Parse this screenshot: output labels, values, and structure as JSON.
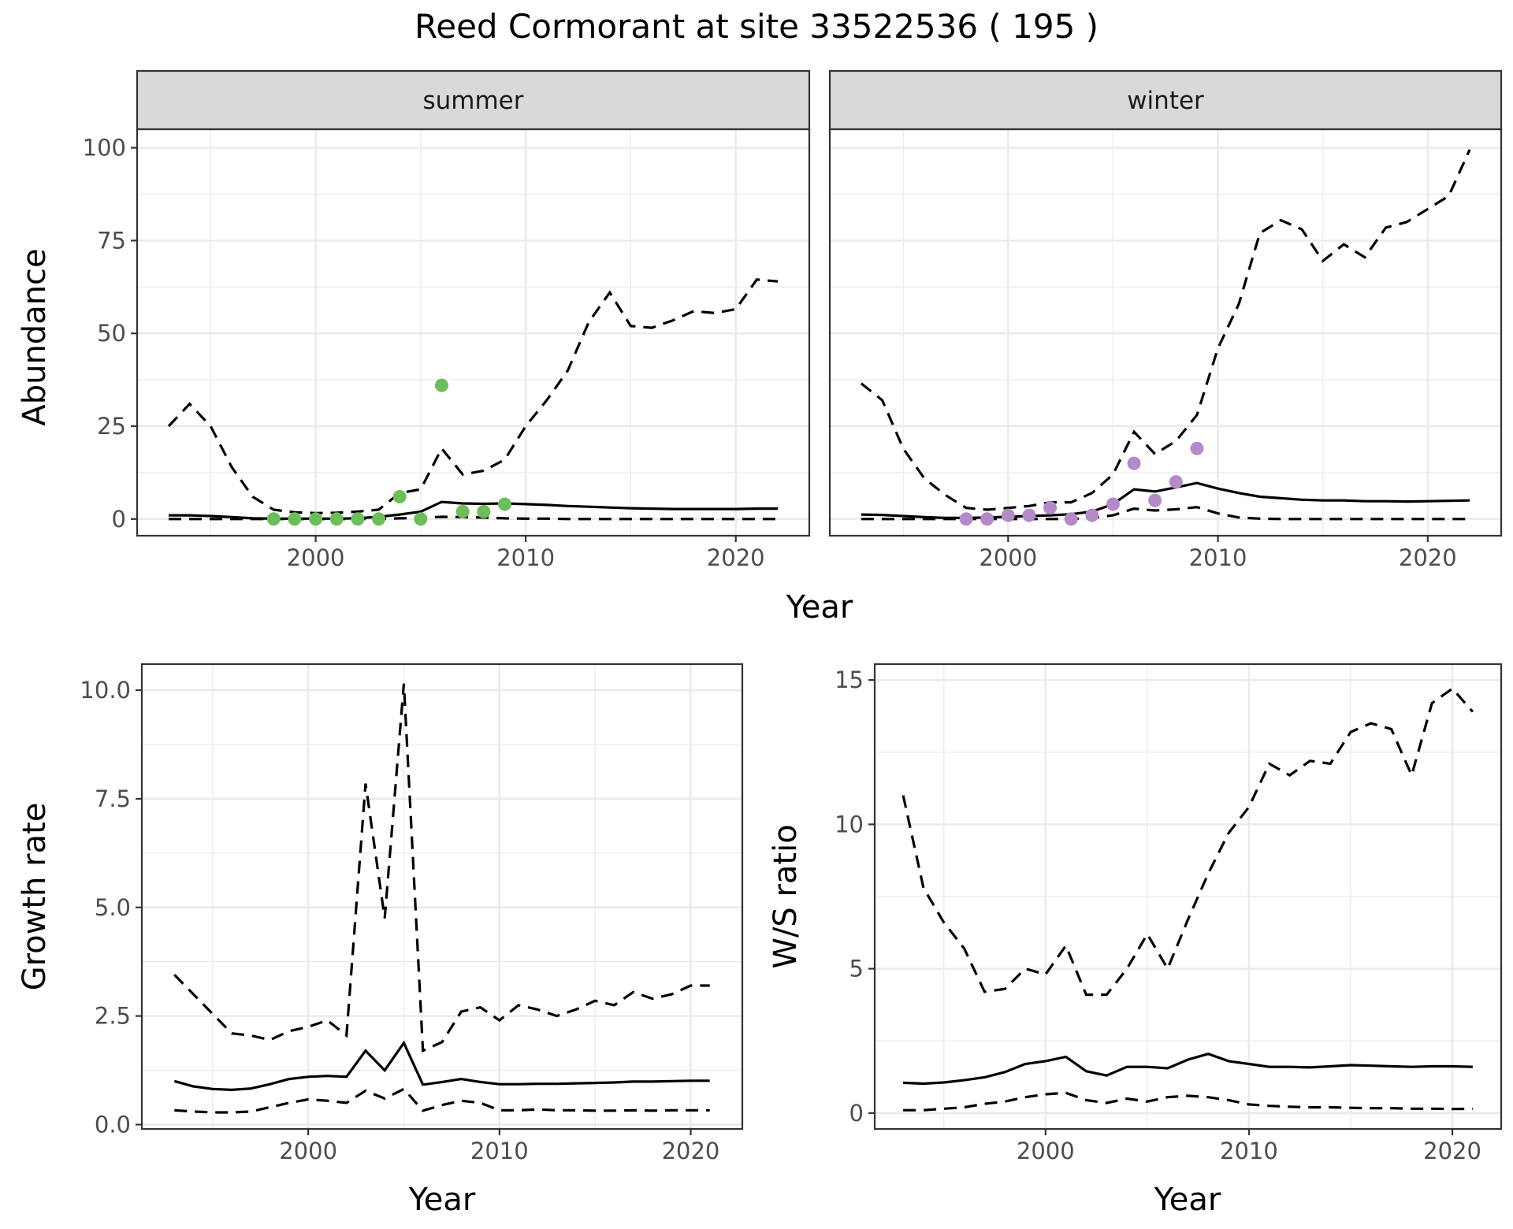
{
  "title": "Reed Cormorant at site 33522536 ( 195 )",
  "colors": {
    "summer_points": "#6dbd5a",
    "winter_points": "#b48ac8"
  },
  "chart_data": [
    {
      "id": "abundance",
      "type": "line",
      "facets": [
        "summer",
        "winter"
      ],
      "xlabel": "Year",
      "ylabel": "Abundance",
      "xlim": [
        1991.5,
        2023.5
      ],
      "ylim": [
        -4.5,
        105
      ],
      "xticks": [
        2000,
        2010,
        2020
      ],
      "yticks": [
        0,
        25,
        50,
        75,
        100
      ],
      "grid": true,
      "panels": [
        {
          "facet": "summer",
          "points_color": "#6dbd5a",
          "x": [
            1993,
            1994,
            1995,
            1996,
            1997,
            1998,
            1999,
            2000,
            2001,
            2002,
            2003,
            2004,
            2005,
            2006,
            2007,
            2008,
            2009,
            2010,
            2011,
            2012,
            2013,
            2014,
            2015,
            2016,
            2017,
            2018,
            2019,
            2020,
            2021,
            2022
          ],
          "mean": [
            1.0,
            1.0,
            0.8,
            0.5,
            0.2,
            0.1,
            0.1,
            0.1,
            0.1,
            0.2,
            0.6,
            1.2,
            2.0,
            4.6,
            4.2,
            4.1,
            4.2,
            4.0,
            3.8,
            3.5,
            3.3,
            3.1,
            2.9,
            2.8,
            2.7,
            2.7,
            2.7,
            2.7,
            2.8,
            2.8
          ],
          "upper": [
            25,
            31,
            25,
            14,
            6,
            2.5,
            1.8,
            1.6,
            1.7,
            2.0,
            2.5,
            7,
            8,
            19,
            12,
            13,
            16,
            25,
            32,
            40,
            53,
            61,
            52,
            51.5,
            53.5,
            56,
            55.5,
            56.5,
            64.5,
            64
          ],
          "lower": [
            0,
            0,
            0,
            0,
            0,
            0,
            0,
            0,
            0,
            0,
            0,
            0.2,
            0.3,
            0.6,
            0.5,
            0.4,
            0.2,
            0.1,
            0.1,
            0,
            0,
            0,
            0,
            0,
            0,
            0,
            0,
            0,
            0,
            0
          ],
          "observed": [
            {
              "x": 1998,
              "y": 0
            },
            {
              "x": 1999,
              "y": 0
            },
            {
              "x": 2000,
              "y": 0
            },
            {
              "x": 2001,
              "y": 0
            },
            {
              "x": 2002,
              "y": 0
            },
            {
              "x": 2003,
              "y": 0
            },
            {
              "x": 2004,
              "y": 6
            },
            {
              "x": 2005,
              "y": 0
            },
            {
              "x": 2006,
              "y": 36
            },
            {
              "x": 2007,
              "y": 2
            },
            {
              "x": 2008,
              "y": 2
            },
            {
              "x": 2009,
              "y": 4
            }
          ]
        },
        {
          "facet": "winter",
          "points_color": "#b48ac8",
          "x": [
            1993,
            1994,
            1995,
            1996,
            1997,
            1998,
            1999,
            2000,
            2001,
            2002,
            2003,
            2004,
            2005,
            2006,
            2007,
            2008,
            2009,
            2010,
            2011,
            2012,
            2013,
            2014,
            2015,
            2016,
            2017,
            2018,
            2019,
            2020,
            2021,
            2022
          ],
          "mean": [
            1.2,
            1.1,
            0.8,
            0.5,
            0.3,
            0.3,
            0.4,
            0.6,
            0.8,
            1.0,
            1.3,
            2.0,
            4.0,
            8.0,
            7.4,
            8.5,
            9.7,
            8.2,
            7.0,
            6.0,
            5.6,
            5.2,
            5.0,
            5.0,
            4.8,
            4.8,
            4.7,
            4.8,
            4.9,
            5.0
          ],
          "upper": [
            36.5,
            32,
            19,
            11,
            6.5,
            3.0,
            2.5,
            3.0,
            3.5,
            4.5,
            4.5,
            7,
            12,
            23.5,
            17.5,
            21,
            28,
            46,
            58,
            77,
            80.5,
            78,
            69.5,
            74,
            70.5,
            78.5,
            80,
            83.5,
            87,
            99.5
          ],
          "lower": [
            0,
            0,
            0,
            0,
            0,
            0,
            0,
            0,
            0,
            0,
            0,
            0.3,
            1.0,
            2.8,
            2.3,
            2.6,
            3.2,
            1.5,
            0.4,
            0.1,
            0,
            0,
            0,
            0,
            0,
            0,
            0,
            0,
            0,
            0
          ],
          "observed": [
            {
              "x": 1998,
              "y": 0
            },
            {
              "x": 1999,
              "y": 0
            },
            {
              "x": 2000,
              "y": 1
            },
            {
              "x": 2001,
              "y": 1
            },
            {
              "x": 2002,
              "y": 3
            },
            {
              "x": 2003,
              "y": 0
            },
            {
              "x": 2004,
              "y": 1
            },
            {
              "x": 2005,
              "y": 4
            },
            {
              "x": 2006,
              "y": 15
            },
            {
              "x": 2007,
              "y": 5
            },
            {
              "x": 2008,
              "y": 10
            },
            {
              "x": 2009,
              "y": 19
            }
          ]
        }
      ]
    },
    {
      "id": "growth",
      "type": "line",
      "xlabel": "Year",
      "ylabel": "Growth rate",
      "xlim": [
        1991.3,
        2022.7
      ],
      "ylim": [
        -0.1,
        10.6
      ],
      "xticks": [
        2000,
        2010,
        2020
      ],
      "yticks": [
        0.0,
        2.5,
        5.0,
        7.5,
        10.0
      ],
      "ytick_labels": [
        "0.0",
        "2.5",
        "5.0",
        "7.5",
        "10.0"
      ],
      "grid": true,
      "x": [
        1993,
        1994,
        1995,
        1996,
        1997,
        1998,
        1999,
        2000,
        2001,
        2002,
        2003,
        2004,
        2005,
        2006,
        2007,
        2008,
        2009,
        2010,
        2011,
        2012,
        2013,
        2014,
        2015,
        2016,
        2017,
        2018,
        2019,
        2020,
        2021
      ],
      "mean": [
        1.0,
        0.88,
        0.82,
        0.8,
        0.83,
        0.93,
        1.05,
        1.1,
        1.12,
        1.1,
        1.7,
        1.25,
        1.88,
        0.92,
        0.98,
        1.05,
        0.98,
        0.93,
        0.93,
        0.94,
        0.94,
        0.95,
        0.96,
        0.97,
        0.99,
        0.99,
        1.0,
        1.01,
        1.01
      ],
      "upper": [
        3.45,
        3.0,
        2.55,
        2.1,
        2.05,
        1.95,
        2.15,
        2.25,
        2.4,
        2.05,
        7.85,
        4.75,
        10.15,
        1.7,
        1.9,
        2.6,
        2.7,
        2.4,
        2.75,
        2.65,
        2.5,
        2.65,
        2.85,
        2.75,
        3.05,
        2.9,
        3.0,
        3.2,
        3.2
      ],
      "lower": [
        0.33,
        0.3,
        0.28,
        0.28,
        0.3,
        0.4,
        0.5,
        0.58,
        0.55,
        0.5,
        0.78,
        0.6,
        0.82,
        0.32,
        0.45,
        0.55,
        0.5,
        0.33,
        0.33,
        0.35,
        0.33,
        0.33,
        0.32,
        0.32,
        0.33,
        0.32,
        0.33,
        0.33,
        0.33
      ]
    },
    {
      "id": "ws-ratio",
      "type": "line",
      "xlabel": "Year",
      "ylabel": "W/S ratio",
      "xlim": [
        1991.6,
        2022.4
      ],
      "ylim": [
        -0.55,
        15.55
      ],
      "xticks": [
        2000,
        2010,
        2020
      ],
      "yticks": [
        0,
        5,
        10,
        15
      ],
      "grid": true,
      "x": [
        1993,
        1994,
        1995,
        1996,
        1997,
        1998,
        1999,
        2000,
        2001,
        2002,
        2003,
        2004,
        2005,
        2006,
        2007,
        2008,
        2009,
        2010,
        2011,
        2012,
        2013,
        2014,
        2015,
        2016,
        2017,
        2018,
        2019,
        2020,
        2021
      ],
      "mean": [
        1.05,
        1.02,
        1.06,
        1.14,
        1.24,
        1.42,
        1.7,
        1.8,
        1.95,
        1.45,
        1.3,
        1.6,
        1.6,
        1.55,
        1.85,
        2.05,
        1.8,
        1.7,
        1.6,
        1.6,
        1.58,
        1.62,
        1.66,
        1.64,
        1.62,
        1.6,
        1.62,
        1.62,
        1.6
      ],
      "upper": [
        11.0,
        7.8,
        6.6,
        5.7,
        4.2,
        4.3,
        5.0,
        4.8,
        5.8,
        4.1,
        4.1,
        5.0,
        6.2,
        5.0,
        6.7,
        8.3,
        9.7,
        10.6,
        12.1,
        11.7,
        12.2,
        12.1,
        13.2,
        13.5,
        13.3,
        11.7,
        14.2,
        14.7,
        13.9
      ],
      "lower": [
        0.1,
        0.1,
        0.15,
        0.2,
        0.32,
        0.4,
        0.55,
        0.65,
        0.7,
        0.45,
        0.35,
        0.5,
        0.4,
        0.55,
        0.6,
        0.55,
        0.45,
        0.3,
        0.25,
        0.22,
        0.2,
        0.2,
        0.18,
        0.17,
        0.17,
        0.15,
        0.15,
        0.14,
        0.15
      ]
    }
  ]
}
